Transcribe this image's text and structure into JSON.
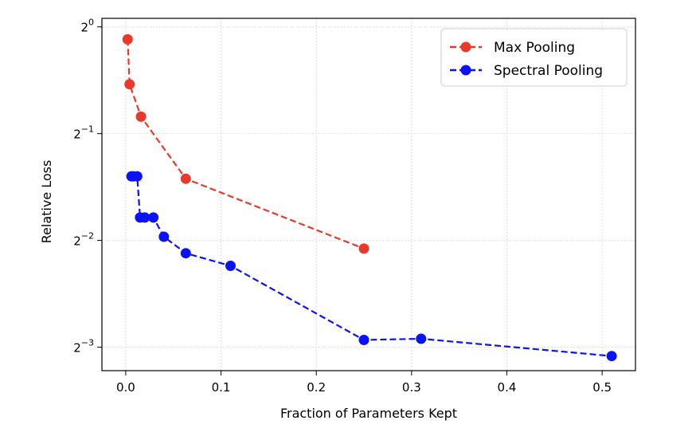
{
  "chart_data": {
    "type": "line",
    "xlabel": "Fraction of Parameters Kept",
    "ylabel": "Relative Loss",
    "xlim": [
      -0.025,
      0.535
    ],
    "ylim_log2": [
      -3.22,
      0.08
    ],
    "y_scale": "log2",
    "x_ticks": [
      {
        "value": 0.0,
        "label": "0.0"
      },
      {
        "value": 0.1,
        "label": "0.1"
      },
      {
        "value": 0.2,
        "label": "0.2"
      },
      {
        "value": 0.3,
        "label": "0.3"
      },
      {
        "value": 0.4,
        "label": "0.4"
      },
      {
        "value": 0.5,
        "label": "0.5"
      }
    ],
    "y_ticks": [
      {
        "exp": 0,
        "base": "2",
        "sup": "0"
      },
      {
        "exp": -1,
        "base": "2",
        "sup": "−1"
      },
      {
        "exp": -2,
        "base": "2",
        "sup": "−2"
      },
      {
        "exp": -3,
        "base": "2",
        "sup": "−3"
      }
    ],
    "grid": true,
    "legend_position": "top-right",
    "series": [
      {
        "name": "Max Pooling",
        "color": "#e8392a",
        "line_style": "dashed",
        "marker": "circle",
        "x": [
          0.002,
          0.004,
          0.016,
          0.063,
          0.25
        ],
        "y": [
          0.922,
          0.689,
          0.558,
          0.373,
          0.237
        ]
      },
      {
        "name": "Spectral Pooling",
        "color": "#0b12f5",
        "line_style": "dashed",
        "marker": "circle",
        "x": [
          0.006,
          0.008,
          0.012,
          0.015,
          0.02,
          0.029,
          0.04,
          0.063,
          0.11,
          0.25,
          0.31,
          0.51
        ],
        "y": [
          0.379,
          0.379,
          0.379,
          0.29,
          0.29,
          0.29,
          0.256,
          0.23,
          0.212,
          0.131,
          0.132,
          0.118
        ]
      }
    ]
  }
}
